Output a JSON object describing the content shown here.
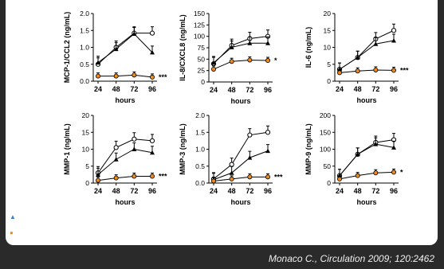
{
  "legend": {
    "triangle_icon": "triangle-up",
    "dot_icon": "filled-circle",
    "colors": {
      "triangle": "#3a7bd5",
      "dot": "#ef8a1a"
    }
  },
  "citation": "Monaco C., Circulation 2009; 120:2462",
  "chart_data": [
    {
      "type": "line",
      "ylabel": "MCP-1/CCL2 (ng/mL)",
      "xlabel": "hours",
      "x": [
        "24",
        "48",
        "72",
        "96"
      ],
      "yticks": [
        "0.0",
        "0.5",
        "1.0",
        "1.5",
        "2.0"
      ],
      "ylim": [
        0,
        2.0
      ],
      "series": [
        {
          "marker": "open-circle",
          "values": [
            0.5,
            1.0,
            1.42,
            1.42
          ]
        },
        {
          "marker": "filled-triangle",
          "values": [
            0.55,
            0.95,
            1.4,
            0.85
          ]
        },
        {
          "marker": "filled-circle-orange",
          "values": [
            0.15,
            0.15,
            0.18,
            0.12
          ]
        }
      ],
      "annotation": "***"
    },
    {
      "type": "line",
      "ylabel": "IL-8/CXCL8 (ng/mL)",
      "xlabel": "hours",
      "x": [
        "24",
        "48",
        "72",
        "96"
      ],
      "yticks": [
        "0",
        "25",
        "50",
        "75",
        "100",
        "125",
        "150"
      ],
      "ylim": [
        0,
        150
      ],
      "series": [
        {
          "marker": "open-circle",
          "values": [
            40,
            80,
            95,
            100
          ]
        },
        {
          "marker": "filled-triangle",
          "values": [
            42,
            76,
            85,
            85
          ]
        },
        {
          "marker": "filled-circle-orange",
          "values": [
            28,
            45,
            48,
            47
          ]
        }
      ],
      "annotation": "*"
    },
    {
      "type": "line",
      "ylabel": "IL-6 (ng/mL)",
      "xlabel": "hours",
      "x": [
        "24",
        "48",
        "72",
        "96"
      ],
      "yticks": [
        "0",
        "5",
        "10",
        "15",
        "20"
      ],
      "ylim": [
        0,
        20
      ],
      "series": [
        {
          "marker": "open-circle",
          "values": [
            3.5,
            7.0,
            12.5,
            15.0
          ]
        },
        {
          "marker": "filled-triangle",
          "values": [
            3.5,
            7.0,
            11.0,
            12.0
          ]
        },
        {
          "marker": "filled-circle-orange",
          "values": [
            2.5,
            3.0,
            3.3,
            3.2
          ]
        }
      ],
      "annotation": "***"
    },
    {
      "type": "line",
      "ylabel": "MMP-1 (ng/mL)",
      "xlabel": "hours",
      "x": [
        "24",
        "48",
        "72",
        "96"
      ],
      "yticks": [
        "0",
        "5",
        "10",
        "15",
        "20"
      ],
      "ylim": [
        0,
        20
      ],
      "series": [
        {
          "marker": "open-circle",
          "values": [
            3.0,
            10.5,
            13.0,
            12.5
          ]
        },
        {
          "marker": "filled-triangle",
          "values": [
            2.5,
            7.0,
            10.0,
            9.0
          ]
        },
        {
          "marker": "filled-circle-orange",
          "values": [
            0.8,
            1.5,
            2.0,
            2.0
          ]
        }
      ],
      "annotation": "***"
    },
    {
      "type": "line",
      "ylabel": "MMP-3 (ng/mL)",
      "xlabel": "hours",
      "x": [
        "24",
        "48",
        "72",
        "96"
      ],
      "yticks": [
        "0.0",
        "0.5",
        "1.0",
        "1.5",
        "2.0"
      ],
      "ylim": [
        0,
        2.0
      ],
      "series": [
        {
          "marker": "open-circle",
          "values": [
            0.12,
            0.55,
            1.42,
            1.5
          ]
        },
        {
          "marker": "filled-triangle",
          "values": [
            0.1,
            0.3,
            0.75,
            0.95
          ]
        },
        {
          "marker": "filled-circle-orange",
          "values": [
            0.06,
            0.12,
            0.18,
            0.18
          ]
        }
      ],
      "annotation": "***"
    },
    {
      "type": "line",
      "ylabel": "MMP-9 (ng/mL)",
      "xlabel": "hours",
      "x": [
        "24",
        "48",
        "72",
        "96"
      ],
      "yticks": [
        "0",
        "50",
        "100",
        "150",
        "200"
      ],
      "ylim": [
        0,
        200
      ],
      "series": [
        {
          "marker": "open-circle",
          "values": [
            22,
            85,
            120,
            128
          ]
        },
        {
          "marker": "filled-triangle",
          "values": [
            22,
            85,
            115,
            105
          ]
        },
        {
          "marker": "filled-circle-orange",
          "values": [
            12,
            22,
            30,
            32
          ]
        }
      ],
      "annotation": "*"
    }
  ]
}
